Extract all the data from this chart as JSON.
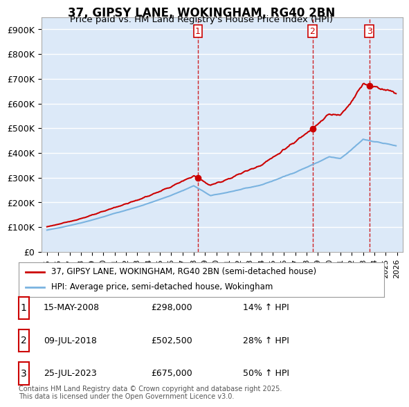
{
  "title": "37, GIPSY LANE, WOKINGHAM, RG40 2BN",
  "subtitle": "Price paid vs. HM Land Registry's House Price Index (HPI)",
  "xlabel": "",
  "ylabel": "",
  "ylim": [
    0,
    950000
  ],
  "yticks": [
    0,
    100000,
    200000,
    300000,
    400000,
    500000,
    600000,
    700000,
    800000,
    900000
  ],
  "ytick_labels": [
    "£0",
    "£100K",
    "£200K",
    "£300K",
    "£400K",
    "£500K",
    "£600K",
    "£700K",
    "£800K",
    "£900K"
  ],
  "background_color": "#ffffff",
  "plot_bg_color": "#dce9f8",
  "grid_color": "#ffffff",
  "hpi_line_color": "#7ab3e0",
  "price_line_color": "#cc0000",
  "sale_marker_color": "#cc0000",
  "vline_color": "#cc0000",
  "transactions": [
    {
      "date_num": 2008.37,
      "price": 298000,
      "label": "1",
      "hpi_pct": 14
    },
    {
      "date_num": 2018.52,
      "price": 502500,
      "label": "2",
      "hpi_pct": 28
    },
    {
      "date_num": 2023.56,
      "price": 675000,
      "label": "3",
      "hpi_pct": 50
    }
  ],
  "transaction_display": [
    {
      "label": "1",
      "date_str": "15-MAY-2008",
      "price_str": "£298,000",
      "hpi_str": "14% ↑ HPI"
    },
    {
      "label": "2",
      "date_str": "09-JUL-2018",
      "price_str": "£502,500",
      "hpi_str": "28% ↑ HPI"
    },
    {
      "label": "3",
      "date_str": "25-JUL-2023",
      "price_str": "£675,000",
      "hpi_str": "50% ↑ HPI"
    }
  ],
  "legend_entries": [
    "37, GIPSY LANE, WOKINGHAM, RG40 2BN (semi-detached house)",
    "HPI: Average price, semi-detached house, Wokingham"
  ],
  "footnote": "Contains HM Land Registry data © Crown copyright and database right 2025.\nThis data is licensed under the Open Government Licence v3.0.",
  "xmin": 1994.5,
  "xmax": 2026.5,
  "xtick_years": [
    1995,
    1996,
    1997,
    1998,
    1999,
    2000,
    2001,
    2002,
    2003,
    2004,
    2005,
    2006,
    2007,
    2008,
    2009,
    2010,
    2011,
    2012,
    2013,
    2014,
    2015,
    2016,
    2017,
    2018,
    2019,
    2020,
    2021,
    2022,
    2023,
    2024,
    2025,
    2026
  ]
}
